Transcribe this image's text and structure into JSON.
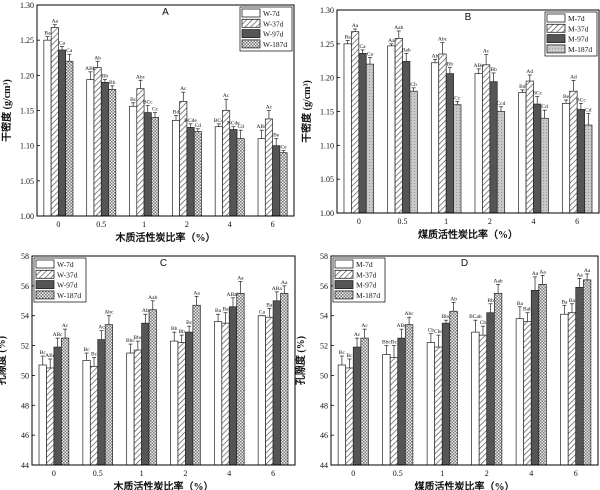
{
  "chart_data": [
    {
      "panel": "A",
      "type": "bar",
      "title": "A",
      "xlabel": "木质活性炭比率（%）",
      "ylabel": "干密度 (g/cm³)",
      "categories": [
        "0",
        "0.5",
        "1",
        "2",
        "4",
        "6"
      ],
      "ylim": [
        1.0,
        1.3
      ],
      "yticks": [
        "1.00",
        "1.05",
        "1.10",
        "1.15",
        "1.20",
        "1.25",
        "1.30"
      ],
      "legend_position": "top-right",
      "series": [
        {
          "name": "W-7d",
          "pattern": "white",
          "values": [
            1.25,
            1.194,
            1.156,
            1.136,
            1.127,
            1.11
          ],
          "errors": [
            0.005,
            0.011,
            0.005,
            0.007,
            0.004,
            0.012
          ],
          "letters": [
            "Ba",
            "ABb",
            "Bc",
            "Bd",
            "BCd",
            "ABd"
          ]
        },
        {
          "name": "W-37d",
          "pattern": "hatch",
          "values": [
            1.268,
            1.211,
            1.181,
            1.163,
            1.15,
            1.138
          ],
          "errors": [
            0.004,
            0.009,
            0.012,
            0.013,
            0.016,
            0.012
          ],
          "letters": [
            "Aa",
            "Ab",
            "Abc",
            "Ac",
            "Ac",
            "Ac"
          ]
        },
        {
          "name": "W-97d",
          "pattern": "dark",
          "values": [
            1.236,
            1.19,
            1.147,
            1.126,
            1.123,
            1.1
          ],
          "errors": [
            0.005,
            0.004,
            0.01,
            0.005,
            0.004,
            0.01
          ],
          "letters": [
            "Ca",
            "Bb",
            "BCc",
            "BCde",
            "BCde",
            "Be"
          ]
        },
        {
          "name": "W-187d",
          "pattern": "check",
          "values": [
            1.22,
            1.18,
            1.14,
            1.12,
            1.11,
            1.09
          ],
          "errors": [
            0.01,
            0.005,
            0.007,
            0.004,
            0.012,
            0.003
          ],
          "letters": [
            "Ca",
            "Bb",
            "Cc",
            "Cd",
            "Cd",
            "Ce"
          ]
        }
      ]
    },
    {
      "panel": "B",
      "type": "bar",
      "title": "B",
      "xlabel": "煤质活性炭比率（%）",
      "ylabel": "干密度 (g/cm³)",
      "categories": [
        "0",
        "0.5",
        "1",
        "2",
        "4",
        "6"
      ],
      "ylim": [
        1.0,
        1.3
      ],
      "yticks": [
        "1.00",
        "1.05",
        "1.10",
        "1.15",
        "1.20",
        "1.25",
        "1.30"
      ],
      "legend_position": "top-right",
      "series": [
        {
          "name": "M-7d",
          "pattern": "white",
          "values": [
            1.25,
            1.247,
            1.222,
            1.206,
            1.178,
            1.162
          ],
          "errors": [
            0.005,
            0.003,
            0.005,
            0.007,
            0.004,
            0.005
          ],
          "letters": [
            "Ba",
            "Aa",
            "Ab",
            "ABc",
            "Bd",
            "Be"
          ]
        },
        {
          "name": "M-37d",
          "pattern": "hatch",
          "values": [
            1.268,
            1.258,
            1.235,
            1.219,
            1.195,
            1.18
          ],
          "errors": [
            0.004,
            0.011,
            0.017,
            0.015,
            0.009,
            0.016
          ],
          "letters": [
            "Aa",
            "Aab",
            "Abc",
            "Ac",
            "Ad",
            "Ad"
          ]
        },
        {
          "name": "M-97d",
          "pattern": "dark",
          "values": [
            1.236,
            1.224,
            1.206,
            1.194,
            1.161,
            1.153
          ],
          "errors": [
            0.005,
            0.012,
            0.009,
            0.013,
            0.011,
            0.009
          ],
          "letters": [
            "Ca",
            "Bab",
            "Bb",
            "Bb",
            "BCc",
            "BCc"
          ]
        },
        {
          "name": "M-187d",
          "pattern": "dots",
          "values": [
            1.22,
            1.18,
            1.16,
            1.15,
            1.14,
            1.13
          ],
          "errors": [
            0.01,
            0.005,
            0.005,
            0.007,
            0.012,
            0.017
          ],
          "letters": [
            "Ca",
            "Cb",
            "Cc",
            "Ccd",
            "Cd",
            "Cd"
          ]
        }
      ]
    },
    {
      "panel": "C",
      "type": "bar",
      "title": "C",
      "xlabel": "木质活性炭比率（%）",
      "ylabel": "孔隙度 (%)",
      "categories": [
        "0",
        "0.5",
        "1",
        "2",
        "4",
        "6"
      ],
      "ylim": [
        44,
        58
      ],
      "yticks": [
        "44",
        "46",
        "48",
        "50",
        "52",
        "54",
        "56",
        "58"
      ],
      "legend_position": "top-left",
      "series": [
        {
          "name": "W-7d",
          "pattern": "white",
          "values": [
            50.7,
            51.0,
            51.5,
            52.3,
            53.6,
            54.0
          ],
          "errors": [
            0.6,
            0.5,
            0.6,
            0.6,
            0.5,
            0.0
          ],
          "letters": [
            "Bc",
            "Bc",
            "Bbc",
            "Bb",
            "Ba",
            "Ca"
          ]
        },
        {
          "name": "W-37d",
          "pattern": "hatch",
          "values": [
            50.5,
            50.6,
            51.7,
            52.2,
            53.5,
            53.9
          ],
          "errors": [
            0.6,
            0.6,
            0.6,
            0.5,
            0.7,
            0.6
          ],
          "letters": [
            "ABc",
            "Bc",
            "Bbc",
            "Bb",
            "Ba",
            "Ba"
          ]
        },
        {
          "name": "W-97d",
          "pattern": "dark",
          "values": [
            51.9,
            52.4,
            53.5,
            52.9,
            54.6,
            55.0
          ],
          "errors": [
            0.6,
            0.6,
            0.6,
            0.4,
            0.6,
            0.6
          ],
          "letters": [
            "ABc",
            "Ac",
            "Ab",
            "Bc",
            "ABab",
            "ABa"
          ]
        },
        {
          "name": "W-187d",
          "pattern": "check",
          "values": [
            52.5,
            53.4,
            54.4,
            54.7,
            55.5,
            55.5
          ],
          "errors": [
            0.6,
            0.6,
            0.6,
            0.6,
            0.8,
            0.5
          ],
          "letters": [
            "Ac",
            "Abc",
            "Aab",
            "Aa",
            "Aa",
            "Aa"
          ]
        }
      ]
    },
    {
      "panel": "D",
      "type": "bar",
      "title": "D",
      "xlabel": "煤质活性炭比率（%）",
      "ylabel": "孔隙度 (%)",
      "categories": [
        "0",
        "0.5",
        "1",
        "2",
        "4",
        "6"
      ],
      "ylim": [
        44,
        58
      ],
      "yticks": [
        "44",
        "46",
        "48",
        "50",
        "52",
        "54",
        "56",
        "58"
      ],
      "legend_position": "top-left",
      "series": [
        {
          "name": "M-7d",
          "pattern": "white",
          "values": [
            50.7,
            51.4,
            52.2,
            52.9,
            53.8,
            54.1
          ],
          "errors": [
            0.6,
            0.6,
            0.6,
            0.8,
            0.8,
            0.6
          ],
          "letters": [
            "Bc",
            "Bbc",
            "Cb",
            "BCab",
            "Ba",
            "Ba"
          ]
        },
        {
          "name": "M-37d",
          "pattern": "hatch",
          "values": [
            50.5,
            51.2,
            51.9,
            52.7,
            53.6,
            54.2
          ],
          "errors": [
            0.6,
            0.8,
            0.8,
            0.6,
            0.6,
            0.6
          ],
          "letters": [
            "Bc",
            "Bc",
            "Cbc",
            "Cb",
            "Bab",
            "Ba"
          ]
        },
        {
          "name": "M-97d",
          "pattern": "dark",
          "values": [
            51.9,
            52.5,
            53.5,
            54.2,
            55.7,
            55.9
          ],
          "errors": [
            0.6,
            0.6,
            0.2,
            0.6,
            0.9,
            0.6
          ],
          "letters": [
            "Ac",
            "ABc",
            "Bbc",
            "Bb",
            "Aa",
            "Aa"
          ]
        },
        {
          "name": "M-187d",
          "pattern": "check",
          "values": [
            52.5,
            53.4,
            54.3,
            55.5,
            56.1,
            56.4
          ],
          "errors": [
            0.6,
            0.5,
            0.6,
            0.6,
            0.6,
            0.4
          ],
          "letters": [
            "Ac",
            "Abc",
            "Ab",
            "Aab",
            "Aa",
            "Aa"
          ]
        }
      ]
    }
  ]
}
